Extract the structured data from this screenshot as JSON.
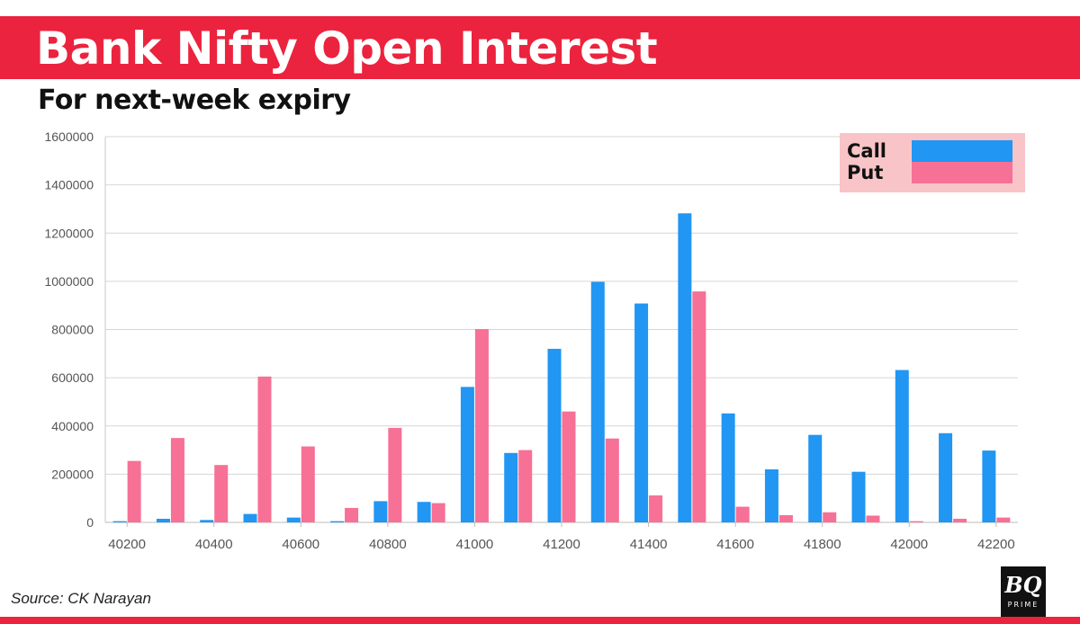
{
  "header": {
    "title": "Bank Nifty Open Interest",
    "subtitle": "For next-week expiry"
  },
  "footer": {
    "source": "Source: CK Narayan",
    "logo_mark": "BQ",
    "logo_sub": "PRIME"
  },
  "colors": {
    "banner": "#ec233e",
    "call": "#2196f3",
    "put": "#f77096",
    "legend_bg": "#f8c4c7"
  },
  "chart_data": {
    "type": "bar",
    "title": "Bank Nifty Open Interest",
    "subtitle": "For next-week expiry",
    "xlabel": "",
    "ylabel": "",
    "categories": [
      40200,
      40300,
      40400,
      40500,
      40600,
      40700,
      40800,
      40900,
      41000,
      41100,
      41200,
      41300,
      41400,
      41500,
      41600,
      41700,
      41800,
      41900,
      42000,
      42100,
      42200
    ],
    "x_tick_labels": [
      "40200",
      "40400",
      "40600",
      "40800",
      "41000",
      "41200",
      "41400",
      "41600",
      "41800",
      "42000",
      "42200"
    ],
    "ylim": [
      0,
      1600000
    ],
    "y_ticks": [
      0,
      200000,
      400000,
      600000,
      800000,
      1000000,
      1200000,
      1400000,
      1600000
    ],
    "grid": true,
    "legend_position": "top-right",
    "series": [
      {
        "name": "Call",
        "color": "#2196f3",
        "values": [
          5000,
          15000,
          10000,
          35000,
          20000,
          5000,
          88000,
          85000,
          562000,
          288000,
          720000,
          998000,
          908000,
          1282000,
          452000,
          220000,
          363000,
          210000,
          632000,
          370000,
          298000
        ]
      },
      {
        "name": "Put",
        "color": "#f77096",
        "values": [
          255000,
          350000,
          238000,
          605000,
          315000,
          60000,
          392000,
          80000,
          802000,
          300000,
          460000,
          348000,
          112000,
          958000,
          65000,
          30000,
          42000,
          28000,
          5000,
          15000,
          20000
        ]
      }
    ]
  }
}
